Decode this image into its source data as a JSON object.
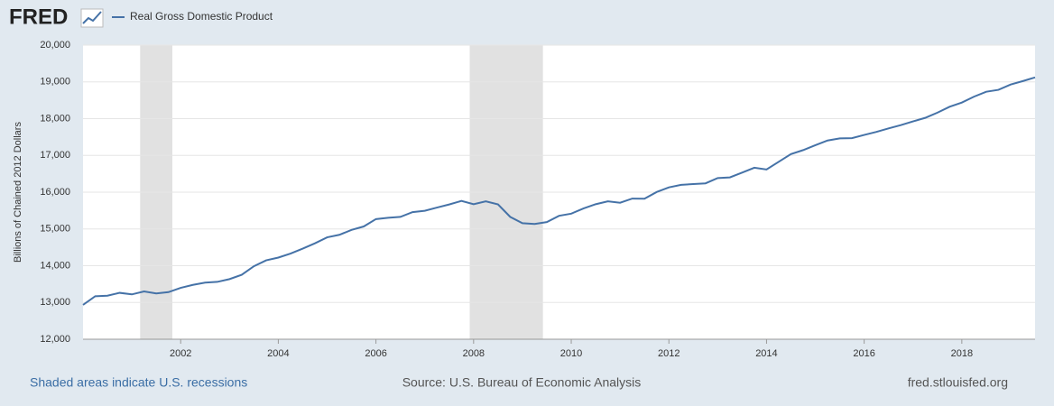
{
  "logo": "FRED",
  "chart_data": {
    "type": "line",
    "series": [
      {
        "name": "Real Gross Domestic Product",
        "color": "#4572a7",
        "values": [
          12935,
          13170,
          13184,
          13262,
          13220,
          13300,
          13245,
          13281,
          13398,
          13478,
          13539,
          13560,
          13635,
          13752,
          13985,
          14146,
          14221,
          14330,
          14465,
          14609,
          14771,
          14840,
          14973,
          15067,
          15268,
          15303,
          15327,
          15457,
          15494,
          15582,
          15666,
          15762,
          15672,
          15752,
          15667,
          15328,
          15156,
          15135,
          15187,
          15357,
          15416,
          15557,
          15672,
          15751,
          15712,
          15826,
          15821,
          16004,
          16130,
          16199,
          16220,
          16240,
          16383,
          16403,
          16531,
          16664,
          16617,
          16827,
          17035,
          17144,
          17278,
          17406,
          17463,
          17469,
          17556,
          17639,
          17735,
          17824,
          17925,
          18021,
          18163,
          18323,
          18438,
          18598,
          18732,
          18784,
          18927,
          19022,
          19121
        ]
      }
    ],
    "x": [
      2000,
      2000.25,
      2000.5,
      2000.75,
      2001,
      2001.25,
      2001.5,
      2001.75,
      2002,
      2002.25,
      2002.5,
      2002.75,
      2003,
      2003.25,
      2003.5,
      2003.75,
      2004,
      2004.25,
      2004.5,
      2004.75,
      2005,
      2005.25,
      2005.5,
      2005.75,
      2006,
      2006.25,
      2006.5,
      2006.75,
      2007,
      2007.25,
      2007.5,
      2007.75,
      2008,
      2008.25,
      2008.5,
      2008.75,
      2009,
      2009.25,
      2009.5,
      2009.75,
      2010,
      2010.25,
      2010.5,
      2010.75,
      2011,
      2011.25,
      2011.5,
      2011.75,
      2012,
      2012.25,
      2012.5,
      2012.75,
      2013,
      2013.25,
      2013.5,
      2013.75,
      2014,
      2014.25,
      2014.5,
      2014.75,
      2015,
      2015.25,
      2015.5,
      2015.75,
      2016,
      2016.25,
      2016.5,
      2016.75,
      2017,
      2017.25,
      2017.5,
      2017.75,
      2018,
      2018.25,
      2018.5,
      2018.75,
      2019,
      2019.25,
      2019.5
    ],
    "xlim": [
      2000,
      2019.5
    ],
    "xticks": [
      2002,
      2004,
      2006,
      2008,
      2010,
      2012,
      2014,
      2016,
      2018
    ],
    "ylim": [
      12000,
      20000
    ],
    "yticks": [
      {
        "value": 12000,
        "label": "12,000"
      },
      {
        "value": 13000,
        "label": "13,000"
      },
      {
        "value": 14000,
        "label": "14,000"
      },
      {
        "value": 15000,
        "label": "15,000"
      },
      {
        "value": 16000,
        "label": "16,000"
      },
      {
        "value": 17000,
        "label": "17,000"
      },
      {
        "value": 18000,
        "label": "18,000"
      },
      {
        "value": 19000,
        "label": "19,000"
      },
      {
        "value": 20000,
        "label": "20,000"
      }
    ],
    "ylabel": "Billions of Chained 2012 Dollars",
    "recessions": [
      [
        2001.17,
        2001.83
      ],
      [
        2007.92,
        2009.42
      ]
    ],
    "grid": true,
    "recession_note": "Shaded areas indicate U.S. recessions",
    "source": "Source: U.S. Bureau of Economic Analysis",
    "site": "fred.stlouisfed.org"
  }
}
